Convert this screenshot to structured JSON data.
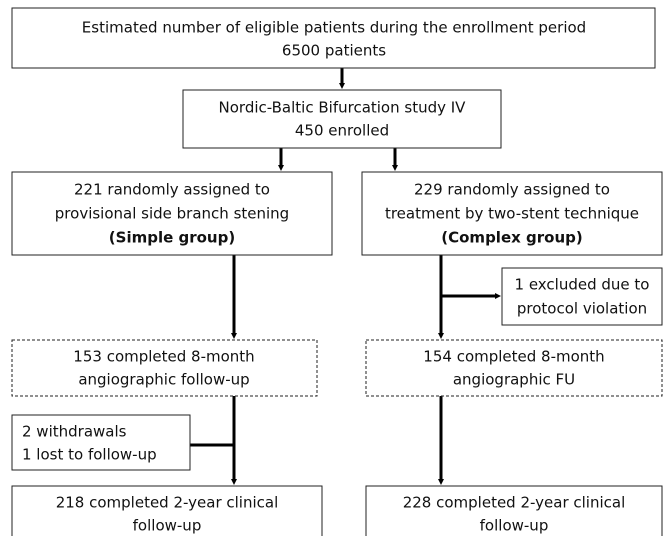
{
  "nodes": [
    {
      "lines": [
        "Estimated number of eligible patients during the enrollment period",
        "6500 patients"
      ]
    },
    {
      "lines": [
        "Nordic-Baltic Bifurcation study IV",
        "450 enrolled"
      ]
    },
    {
      "lines": [
        "221 randomly assigned to",
        "provisional side branch stening",
        "(Simple group)"
      ]
    },
    {
      "lines": [
        "229 randomly assigned to",
        "treatment by two-stent technique",
        "(Complex group)"
      ]
    },
    {
      "lines": [
        "1 excluded due to",
        "protocol violation"
      ]
    },
    {
      "lines": [
        "153 completed 8-month",
        "angiographic follow-up"
      ]
    },
    {
      "lines": [
        "154 completed 8-month",
        "angiographic FU"
      ]
    },
    {
      "lines": [
        "2 withdrawals",
        "1 lost to follow-up"
      ]
    },
    {
      "lines": [
        "218 completed 2-year clinical",
        "follow-up"
      ]
    },
    {
      "lines": [
        "228 completed 2-year clinical",
        "follow-up"
      ]
    }
  ]
}
